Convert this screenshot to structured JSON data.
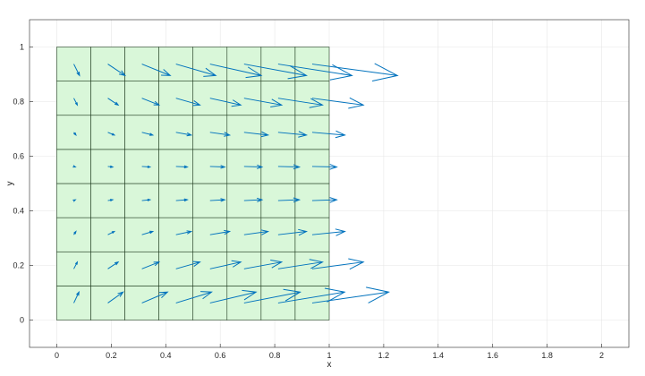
{
  "chart_data": {
    "type": "quiver",
    "xlabel": "x",
    "ylabel": "y",
    "xlim": [
      -0.1,
      2.1
    ],
    "ylim": [
      -0.1,
      1.1
    ],
    "x_ticks": [
      "0",
      "0.2",
      "0.4",
      "0.6",
      "0.8",
      "1",
      "1.2",
      "1.4",
      "1.6",
      "1.8",
      "2"
    ],
    "y_ticks": [
      "0",
      "0.2",
      "0.4",
      "0.6",
      "0.8",
      "1"
    ],
    "grid": true,
    "mesh": {
      "x_edges": [
        0,
        0.125,
        0.25,
        0.375,
        0.5,
        0.625,
        0.75,
        0.875,
        1
      ],
      "y_edges": [
        0,
        0.125,
        0.25,
        0.375,
        0.5,
        0.625,
        0.75,
        0.875,
        1
      ],
      "face_color": "#d9f7d9",
      "edge_color": "#1f3b1f"
    },
    "vectors": {
      "x": [
        0.0625,
        0.1875,
        0.3125,
        0.4375,
        0.5625,
        0.6875,
        0.8125,
        0.9375
      ],
      "y": [
        0.0625,
        0.1875,
        0.3125,
        0.4375,
        0.5625,
        0.6875,
        0.8125,
        0.9375
      ],
      "color": "#0072bd",
      "rows": [
        {
          "y": 0.9375,
          "u": [
            0.021,
            0.063,
            0.104,
            0.146,
            0.188,
            0.229,
            0.271,
            0.313
          ],
          "v": [
            -0.042,
            -0.042,
            -0.042,
            -0.042,
            -0.042,
            -0.042,
            -0.042,
            -0.042
          ]
        },
        {
          "y": 0.8125,
          "u": [
            0.013,
            0.038,
            0.063,
            0.088,
            0.113,
            0.138,
            0.163,
            0.188
          ],
          "v": [
            -0.025,
            -0.025,
            -0.025,
            -0.025,
            -0.025,
            -0.025,
            -0.025,
            -0.025
          ]
        },
        {
          "y": 0.6875,
          "u": [
            0.008,
            0.024,
            0.04,
            0.056,
            0.072,
            0.088,
            0.104,
            0.12
          ],
          "v": [
            -0.01,
            -0.01,
            -0.01,
            -0.01,
            -0.01,
            -0.01,
            -0.01,
            -0.01
          ]
        },
        {
          "y": 0.5625,
          "u": [
            0.006,
            0.018,
            0.03,
            0.042,
            0.054,
            0.066,
            0.078,
            0.09
          ],
          "v": [
            -0.002,
            -0.002,
            -0.002,
            -0.002,
            -0.002,
            -0.002,
            -0.002,
            -0.002
          ]
        },
        {
          "y": 0.4375,
          "u": [
            0.006,
            0.018,
            0.03,
            0.042,
            0.054,
            0.066,
            0.078,
            0.09
          ],
          "v": [
            0.003,
            0.003,
            0.003,
            0.003,
            0.003,
            0.003,
            0.003,
            0.003
          ]
        },
        {
          "y": 0.3125,
          "u": [
            0.008,
            0.024,
            0.04,
            0.056,
            0.072,
            0.088,
            0.104,
            0.12
          ],
          "v": [
            0.012,
            0.012,
            0.012,
            0.012,
            0.012,
            0.012,
            0.012,
            0.012
          ]
        },
        {
          "y": 0.1875,
          "u": [
            0.013,
            0.038,
            0.063,
            0.088,
            0.113,
            0.138,
            0.163,
            0.188
          ],
          "v": [
            0.025,
            0.025,
            0.025,
            0.025,
            0.025,
            0.025,
            0.025,
            0.025
          ]
        },
        {
          "y": 0.0625,
          "u": [
            0.019,
            0.056,
            0.094,
            0.131,
            0.169,
            0.206,
            0.244,
            0.281
          ],
          "v": [
            0.04,
            0.04,
            0.04,
            0.04,
            0.04,
            0.04,
            0.04,
            0.04
          ]
        }
      ]
    }
  }
}
